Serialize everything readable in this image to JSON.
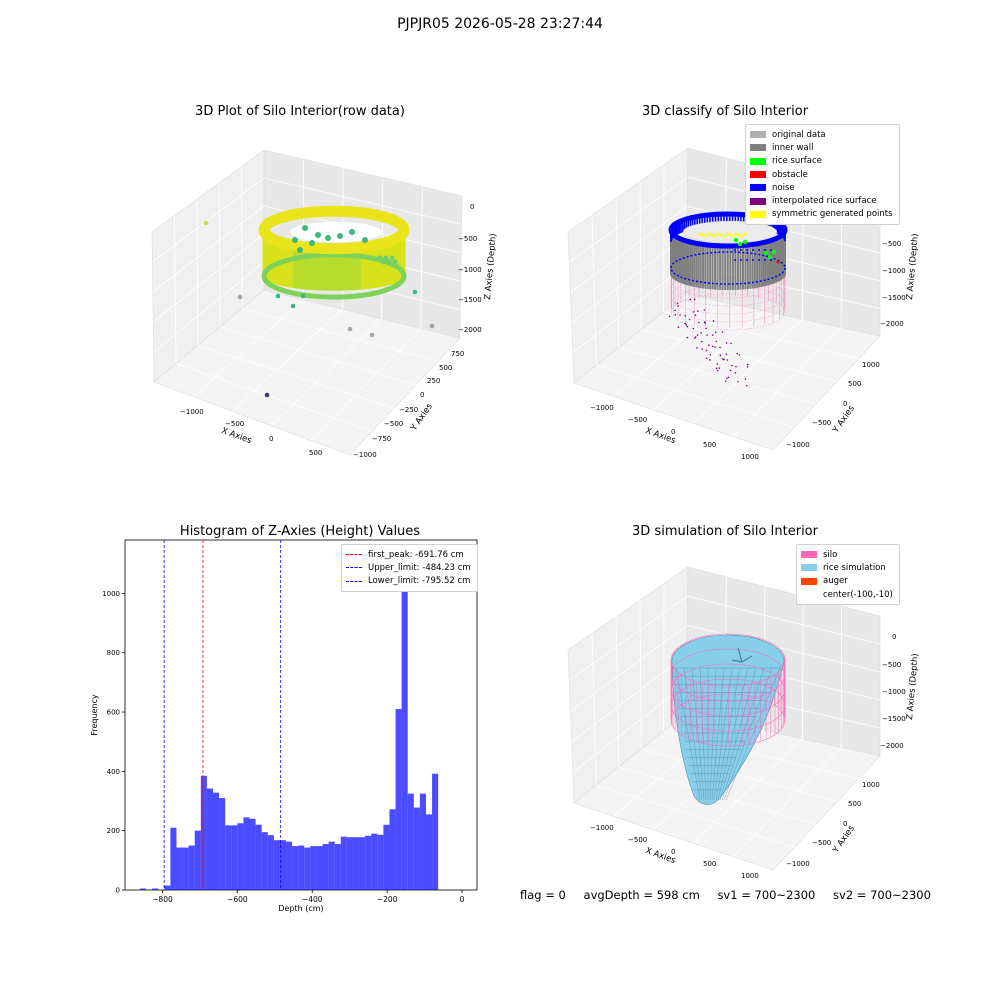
{
  "figure_title": "PJPJR05 2026-05-28 23:27:44",
  "status": {
    "flag": "flag = 0",
    "avg_depth": "avgDepth = 598 cm",
    "sv1": "sv1 = 700~2300",
    "sv2": "sv2 = 700~2300"
  },
  "colors": {
    "original_data": "#b0b0b0",
    "inner_wall": "#808080",
    "rice_surface": "#00ff00",
    "obstacle": "#ff0000",
    "noise": "#0000ff",
    "interpolated": "#800080",
    "symmetric": "#ffff00",
    "silo": "#ff69b4",
    "rice_sim": "#87ceeb",
    "auger": "#ff4500",
    "hist_bar": "#0000ff",
    "peak_line": "#ff0000",
    "limit_line": "#0000ff"
  },
  "chart_data": [
    {
      "type": "scatter",
      "projection": "3d",
      "title": "3D Plot of Silo Interior(row data)",
      "xlabel": "X Axies",
      "ylabel": "Y Axies",
      "zlabel": "Z Axies (Depth)",
      "x_ticks": [
        "−1000",
        "−500",
        "0",
        "500"
      ],
      "y_ticks": [
        "−1000",
        "−750",
        "−500",
        "−250",
        "0",
        "250",
        "500",
        "750"
      ],
      "z_ticks": [
        "0",
        "−500",
        "−1000",
        "−1500",
        "−2000"
      ],
      "grid": true
    },
    {
      "type": "scatter",
      "projection": "3d",
      "title": "3D classify of Silo Interior",
      "xlabel": "X Axies",
      "ylabel": "Y Axies",
      "zlabel": "Z Axies (Depth)",
      "x_ticks": [
        "−1000",
        "−500",
        "0",
        "500",
        "1000"
      ],
      "y_ticks": [
        "−1000",
        "−500",
        "0",
        "500",
        "1000"
      ],
      "z_ticks": [
        "−500",
        "−1000",
        "−1500",
        "−2000"
      ],
      "grid": true,
      "legend_position": "top-right",
      "legend": [
        "original data",
        "inner wall",
        "rice surface",
        "obstacle",
        "noise",
        "interpolated rice surface",
        "symmetric generated points"
      ]
    },
    {
      "type": "bar",
      "title": "Histogram of Z-Axies (Height) Values",
      "xlabel": "Depth (cm)",
      "ylabel": "Frequency",
      "xlim": [
        -900,
        40
      ],
      "ylim": [
        0,
        1180
      ],
      "x_ticks": [
        -800,
        -600,
        -400,
        -200,
        0
      ],
      "x_tick_labels": [
        "−800",
        "−600",
        "−400",
        "−200",
        "0"
      ],
      "y_ticks": [
        0,
        200,
        400,
        600,
        800,
        1000
      ],
      "y_tick_labels": [
        "0",
        "200",
        "400",
        "600",
        "800",
        "1000"
      ],
      "bin_start": -860,
      "bin_width": 16.25,
      "values": [
        5,
        0,
        5,
        0,
        15,
        210,
        143,
        143,
        150,
        200,
        385,
        342,
        328,
        310,
        218,
        218,
        225,
        245,
        240,
        220,
        195,
        185,
        168,
        168,
        163,
        148,
        150,
        143,
        148,
        148,
        155,
        163,
        155,
        180,
        178,
        178,
        178,
        183,
        190,
        186,
        220,
        272,
        610,
        1110,
        325,
        278,
        325,
        255,
        392
      ],
      "lines": [
        {
          "label": "first_peak: -691.76 cm",
          "x": -691.76,
          "color": "#ff0000"
        },
        {
          "label": "Upper_limit: -484.23 cm",
          "x": -484.23,
          "color": "#0000ff"
        },
        {
          "label": "Lower_limit: -795.52 cm",
          "x": -795.52,
          "color": "#0000ff"
        }
      ],
      "legend_position": "top-right"
    },
    {
      "type": "surface",
      "projection": "3d",
      "title": "3D simulation of Silo Interior",
      "xlabel": "X Axies",
      "ylabel": "Y Axies",
      "zlabel": "Z Axies (Depth)",
      "x_ticks": [
        "−1000",
        "−500",
        "0",
        "500",
        "1000"
      ],
      "y_ticks": [
        "−1000",
        "−500",
        "0",
        "500",
        "1000"
      ],
      "z_ticks": [
        "0",
        "−500",
        "−1000",
        "−1500",
        "−2000"
      ],
      "grid": true,
      "legend_position": "top-right",
      "legend": [
        "silo",
        "rice simulation",
        "auger",
        "center(-100,-10)"
      ]
    }
  ]
}
